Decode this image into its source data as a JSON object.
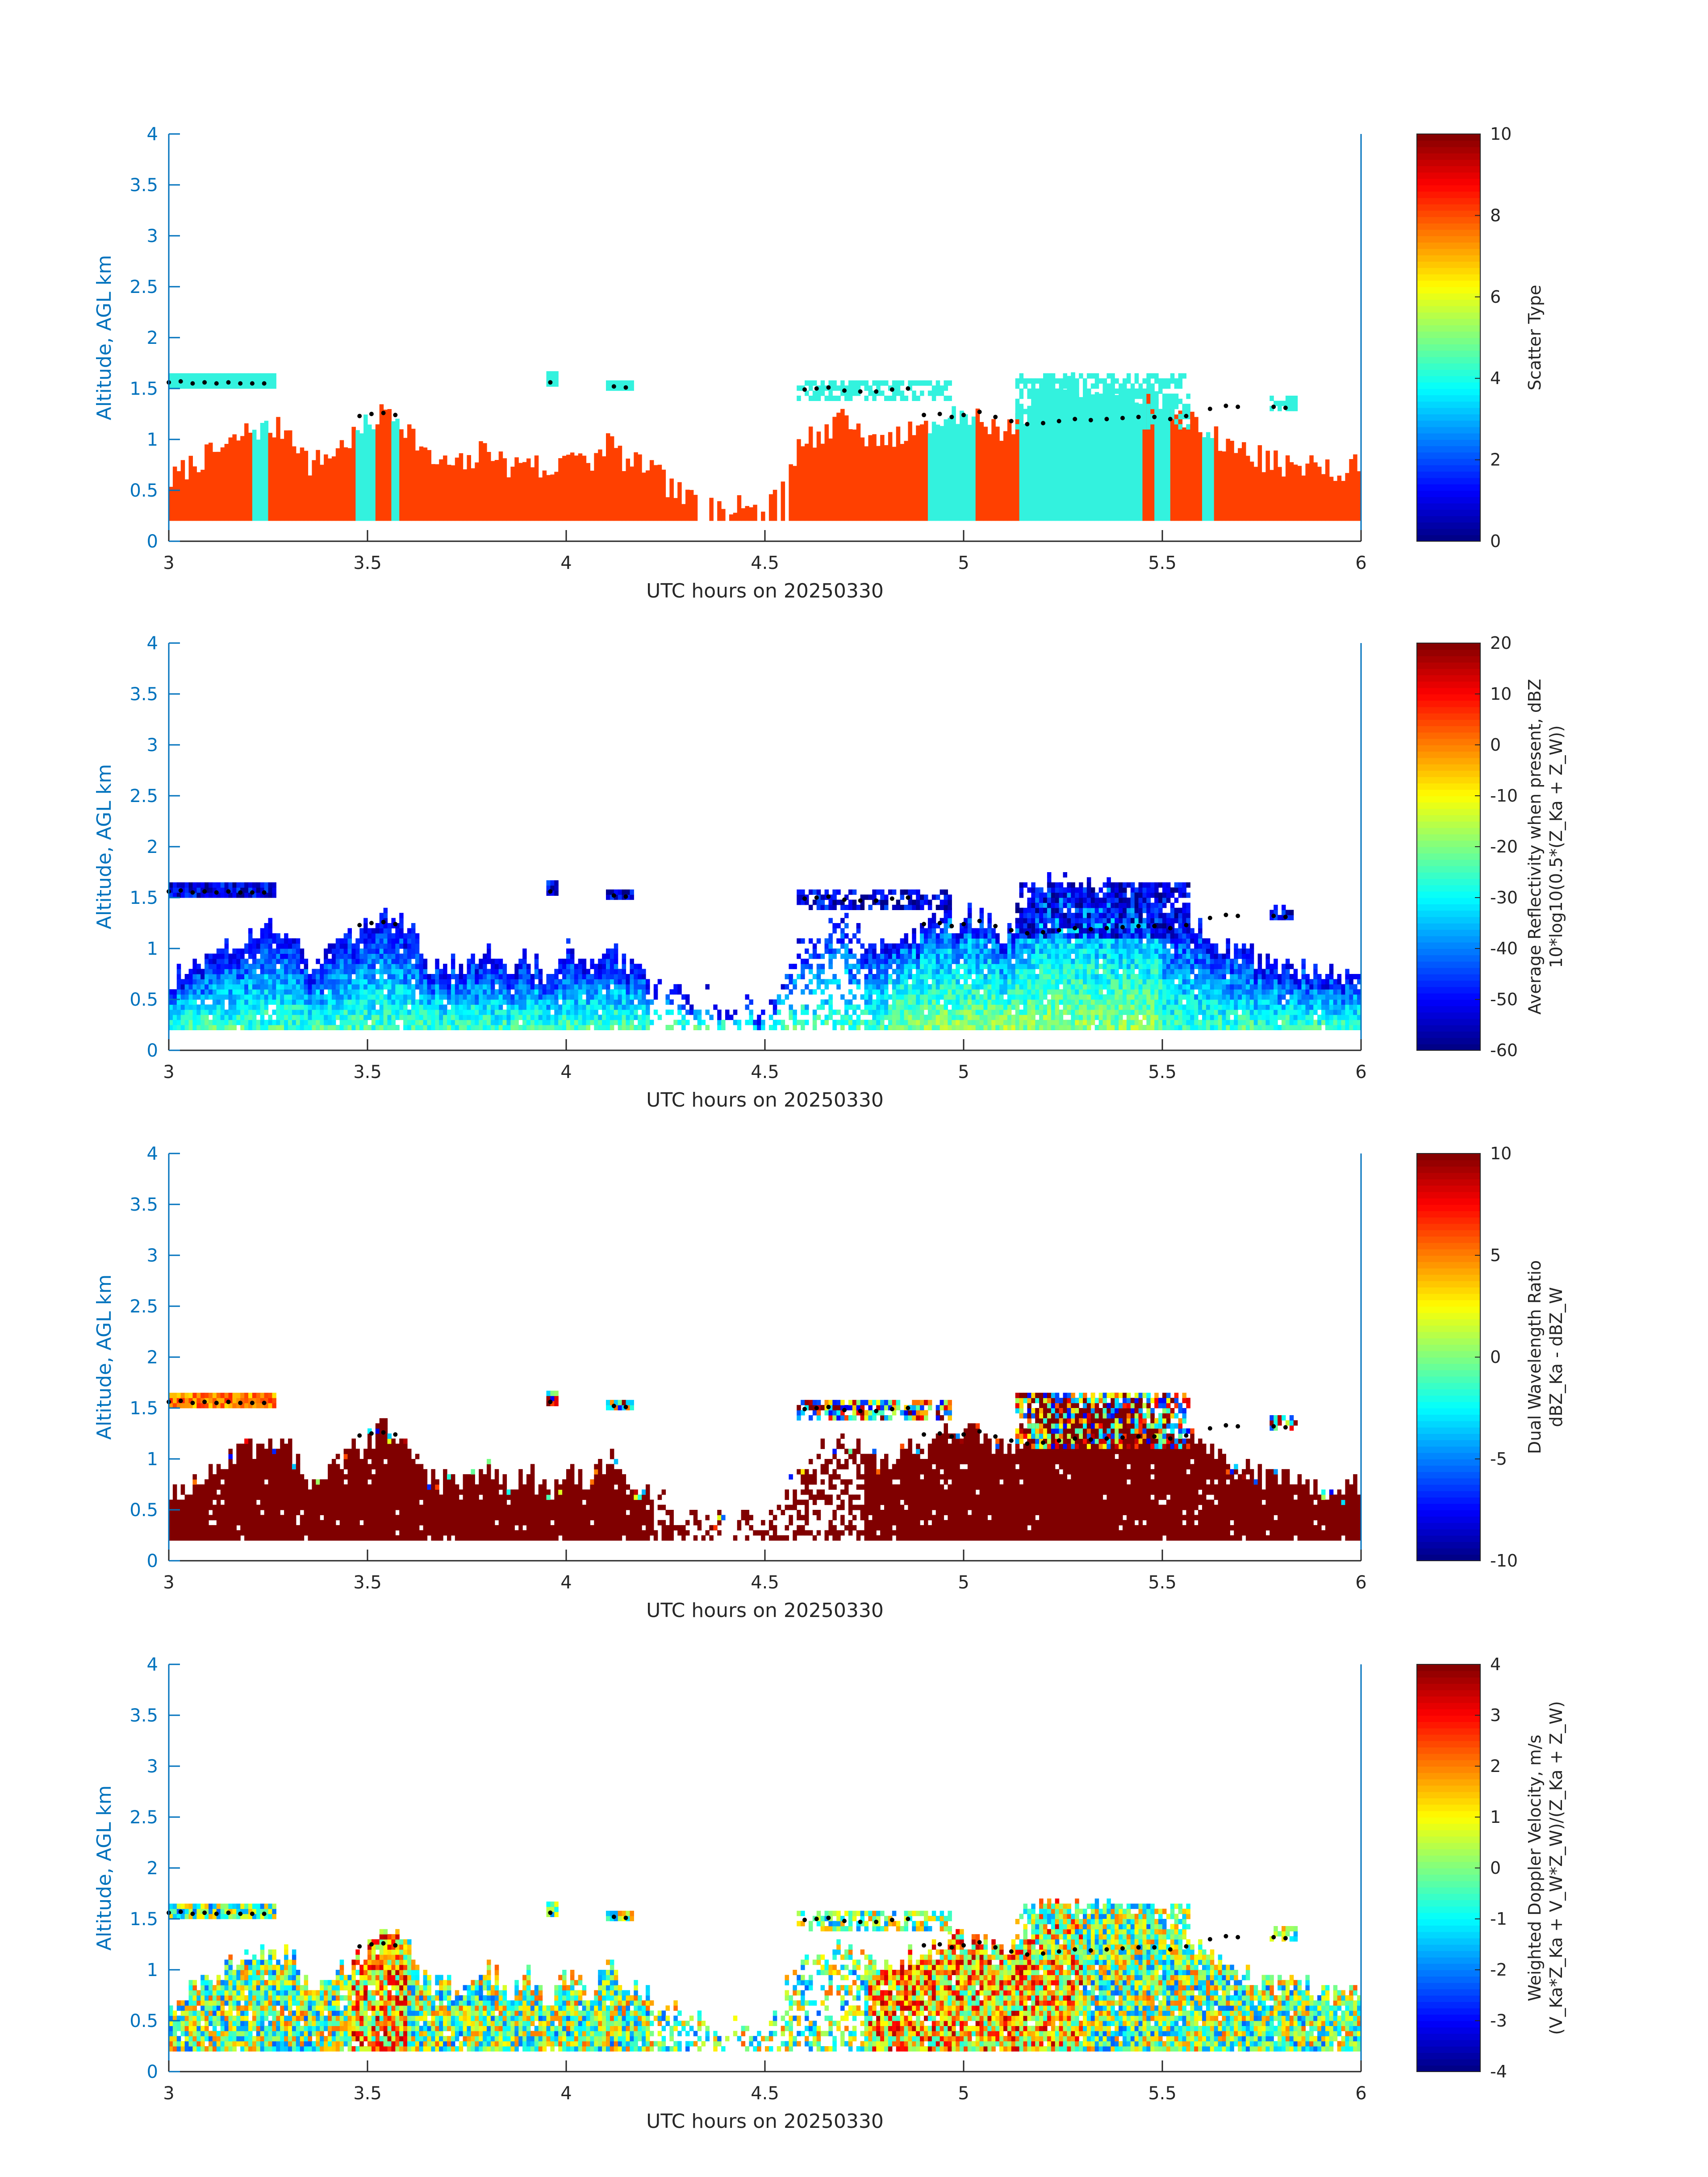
{
  "colors": {
    "axis": "#0072BD",
    "text": "#262626",
    "rain": "#FF4000",
    "ice": "#33F2DE",
    "dots": "#000000"
  },
  "chart_data": [
    {
      "type": "heatmap",
      "variable": "scatter_type",
      "xlabel": "UTC hours on 20250330",
      "ylabel": "Altitude, AGL km",
      "colorbar_label": "Scatter Type",
      "colorbar_ticks": [
        "0",
        "2",
        "4",
        "6",
        "8",
        "10"
      ],
      "clim": [
        0,
        10
      ],
      "colormap": "jet",
      "xlim": [
        3,
        6
      ],
      "ylim": [
        0,
        4
      ],
      "xticks": [
        "3",
        "3.5",
        "4",
        "4.5",
        "5",
        "5.5",
        "6"
      ],
      "yticks": [
        "0",
        "0.5",
        "1",
        "1.5",
        "2",
        "2.5",
        "3",
        "3.5",
        "4"
      ],
      "grid": false
    },
    {
      "type": "heatmap",
      "variable": "reflectivity",
      "xlabel": "UTC hours on 20250330",
      "ylabel": "Altitude, AGL km",
      "colorbar_label": "Average Reflectivity when present, dBZ",
      "colorbar_label_2": "10*log10(0.5*(Z_Ka + Z_W))",
      "colorbar_ticks": [
        "-60",
        "-50",
        "-40",
        "-30",
        "-20",
        "-10",
        "0",
        "10",
        "20"
      ],
      "clim": [
        -60,
        20
      ],
      "colormap": "jet",
      "xlim": [
        3,
        6
      ],
      "ylim": [
        0,
        4
      ],
      "xticks": [
        "3",
        "3.5",
        "4",
        "4.5",
        "5",
        "5.5",
        "6"
      ],
      "yticks": [
        "0",
        "0.5",
        "1",
        "1.5",
        "2",
        "2.5",
        "3",
        "3.5",
        "4"
      ],
      "grid": false
    },
    {
      "type": "heatmap",
      "variable": "dwr",
      "xlabel": "UTC hours on 20250330",
      "ylabel": "Altitude, AGL km",
      "colorbar_label": "Dual Wavelength Ratio",
      "colorbar_label_2": "dBZ_Ka - dBZ_W",
      "colorbar_ticks": [
        "-10",
        "-5",
        "0",
        "5",
        "10"
      ],
      "clim": [
        -10,
        10
      ],
      "colormap": "jet",
      "xlim": [
        3,
        6
      ],
      "ylim": [
        0,
        4
      ],
      "xticks": [
        "3",
        "3.5",
        "4",
        "4.5",
        "5",
        "5.5",
        "6"
      ],
      "yticks": [
        "0",
        "0.5",
        "1",
        "1.5",
        "2",
        "2.5",
        "3",
        "3.5",
        "4"
      ],
      "grid": false
    },
    {
      "type": "heatmap",
      "variable": "velocity",
      "xlabel": "UTC hours on 20250330",
      "ylabel": "Altitude, AGL km",
      "colorbar_label": "Weighted Doppler Velocity, m/s",
      "colorbar_label_2": "(V_Ka*Z_Ka + V_W*Z_W)/(Z_Ka + Z_W)",
      "colorbar_ticks": [
        "-4",
        "-3",
        "-2",
        "-1",
        "0",
        "1",
        "2",
        "3",
        "4"
      ],
      "clim": [
        -4,
        4
      ],
      "colormap": "jet",
      "xlim": [
        3,
        6
      ],
      "ylim": [
        0,
        4
      ],
      "xticks": [
        "3",
        "3.5",
        "4",
        "4.5",
        "5",
        "5.5",
        "6"
      ],
      "yticks": [
        "0",
        "0.5",
        "1",
        "1.5",
        "2",
        "2.5",
        "3",
        "3.5",
        "4"
      ],
      "grid": false
    }
  ],
  "echo_profile": {
    "x": [
      3.0,
      3.05,
      3.1,
      3.15,
      3.2,
      3.25,
      3.3,
      3.35,
      3.4,
      3.45,
      3.5,
      3.55,
      3.6,
      3.65,
      3.7,
      3.75,
      3.8,
      3.85,
      3.9,
      3.95,
      4.0,
      4.05,
      4.1,
      4.15,
      4.2,
      4.25,
      4.3,
      4.35,
      4.4,
      4.45,
      4.5,
      4.55,
      4.6,
      4.65,
      4.7,
      4.75,
      4.8,
      4.85,
      4.9,
      4.95,
      5.0,
      5.05,
      5.1,
      5.15,
      5.2,
      5.25,
      5.3,
      5.35,
      5.4,
      5.45,
      5.5,
      5.55,
      5.6,
      5.65,
      5.7,
      5.75,
      5.8,
      5.85,
      5.9,
      5.95,
      6.0
    ],
    "top_km": [
      0.6,
      0.75,
      0.85,
      0.95,
      1.1,
      1.1,
      1.1,
      0.75,
      0.85,
      1.0,
      1.15,
      1.3,
      1.1,
      0.8,
      0.75,
      0.75,
      0.95,
      0.7,
      0.85,
      0.6,
      0.95,
      0.7,
      1.0,
      0.75,
      0.75,
      0.55,
      0.4,
      0.5,
      0.3,
      0.45,
      0.3,
      0.75,
      1.0,
      1.1,
      1.2,
      1.0,
      0.95,
      1.05,
      1.1,
      1.2,
      1.25,
      1.2,
      1.05,
      1.25,
      1.55,
      1.6,
      1.5,
      1.55,
      1.5,
      1.45,
      1.3,
      1.2,
      1.1,
      0.95,
      0.9,
      0.8,
      0.75,
      0.75,
      0.7,
      0.7,
      0.75
    ],
    "base_km": 0.2
  },
  "ice_columns": [
    [
      3.21,
      3.245
    ],
    [
      3.47,
      3.52
    ],
    [
      3.555,
      3.575
    ],
    [
      4.91,
      5.03
    ],
    [
      5.14,
      5.44
    ],
    [
      5.475,
      5.52
    ],
    [
      5.595,
      5.625
    ]
  ],
  "upper_layers": [
    {
      "x0": 3.0,
      "x1": 3.27,
      "bottom": 1.5,
      "top": 1.62
    },
    {
      "x0": 3.95,
      "x1": 3.98,
      "bottom": 1.52,
      "top": 1.65
    },
    {
      "x0": 4.1,
      "x1": 4.17,
      "bottom": 1.48,
      "top": 1.56
    },
    {
      "x0": 4.58,
      "x1": 4.97,
      "bottom": 1.38,
      "top": 1.58
    },
    {
      "x0": 5.13,
      "x1": 5.57,
      "bottom": 1.1,
      "top": 1.65
    },
    {
      "x0": 5.77,
      "x1": 5.84,
      "bottom": 1.28,
      "top": 1.42
    }
  ],
  "cloud_top_markers": {
    "x": [
      3.0,
      3.03,
      3.06,
      3.09,
      3.12,
      3.15,
      3.18,
      3.21,
      3.24,
      3.48,
      3.51,
      3.54,
      3.57,
      3.96,
      4.12,
      4.15,
      4.6,
      4.63,
      4.66,
      4.7,
      4.74,
      4.78,
      4.82,
      4.86,
      4.9,
      4.94,
      4.97,
      5.0,
      5.04,
      5.08,
      5.12,
      5.16,
      5.2,
      5.24,
      5.28,
      5.32,
      5.36,
      5.4,
      5.44,
      5.48,
      5.52,
      5.56,
      5.62,
      5.66,
      5.69,
      5.78,
      5.81
    ],
    "y_km": [
      1.56,
      1.57,
      1.55,
      1.56,
      1.55,
      1.56,
      1.55,
      1.55,
      1.55,
      1.23,
      1.25,
      1.26,
      1.24,
      1.56,
      1.52,
      1.51,
      1.49,
      1.5,
      1.51,
      1.48,
      1.47,
      1.47,
      1.49,
      1.5,
      1.24,
      1.25,
      1.22,
      1.24,
      1.27,
      1.22,
      1.18,
      1.15,
      1.16,
      1.18,
      1.2,
      1.19,
      1.2,
      1.21,
      1.22,
      1.22,
      1.2,
      1.23,
      1.3,
      1.33,
      1.32,
      1.32,
      1.31
    ]
  }
}
